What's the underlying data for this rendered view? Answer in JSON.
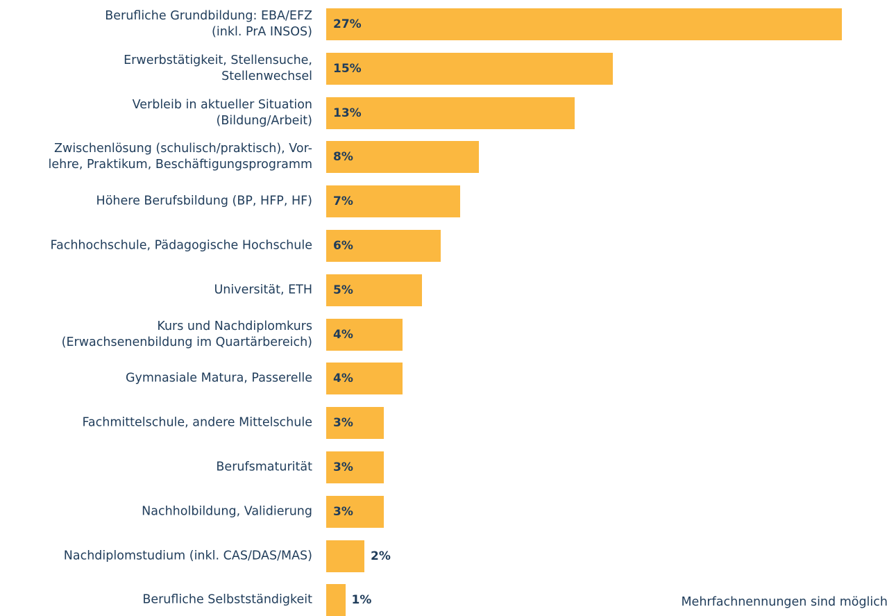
{
  "chart_data": {
    "type": "bar",
    "orientation": "horizontal",
    "color": "#fbb840",
    "categories": [
      "Berufliche Grundbildung: EBA/EFZ\n(inkl. PrA INSOS)",
      "Erwerbstätigkeit, Stellensuche,\nStellenwechsel",
      "Verbleib in aktueller Situation\n(Bildung/Arbeit)",
      "Zwischenlösung (schulisch/praktisch), Vor-\nlehre, Praktikum, Beschäftigungsprogramm",
      "Höhere Berufsbildung (BP, HFP, HF)",
      "Fachhochschule, Pädagogische Hochschule",
      "Universität, ETH",
      "Kurs und Nachdiplomkurs\n(Erwachsenenbildung im Quartärbereich)",
      "Gymnasiale Matura, Passerelle",
      "Fachmittelschule, andere Mittelschule",
      "Berufsmaturität",
      "Nachholbildung, Validierung",
      "Nachdiplomstudium (inkl. CAS/DAS/MAS)",
      "Berufliche Selbstständigkeit"
    ],
    "values": [
      27,
      15,
      13,
      8,
      7,
      6,
      5,
      4,
      4,
      3,
      3,
      3,
      2,
      1
    ],
    "value_labels": [
      "27%",
      "15%",
      "13%",
      "8%",
      "7%",
      "6%",
      "5%",
      "4%",
      "4%",
      "3%",
      "3%",
      "3%",
      "2%",
      "1%"
    ],
    "note": "Mehrfachnennungen sind möglich"
  }
}
